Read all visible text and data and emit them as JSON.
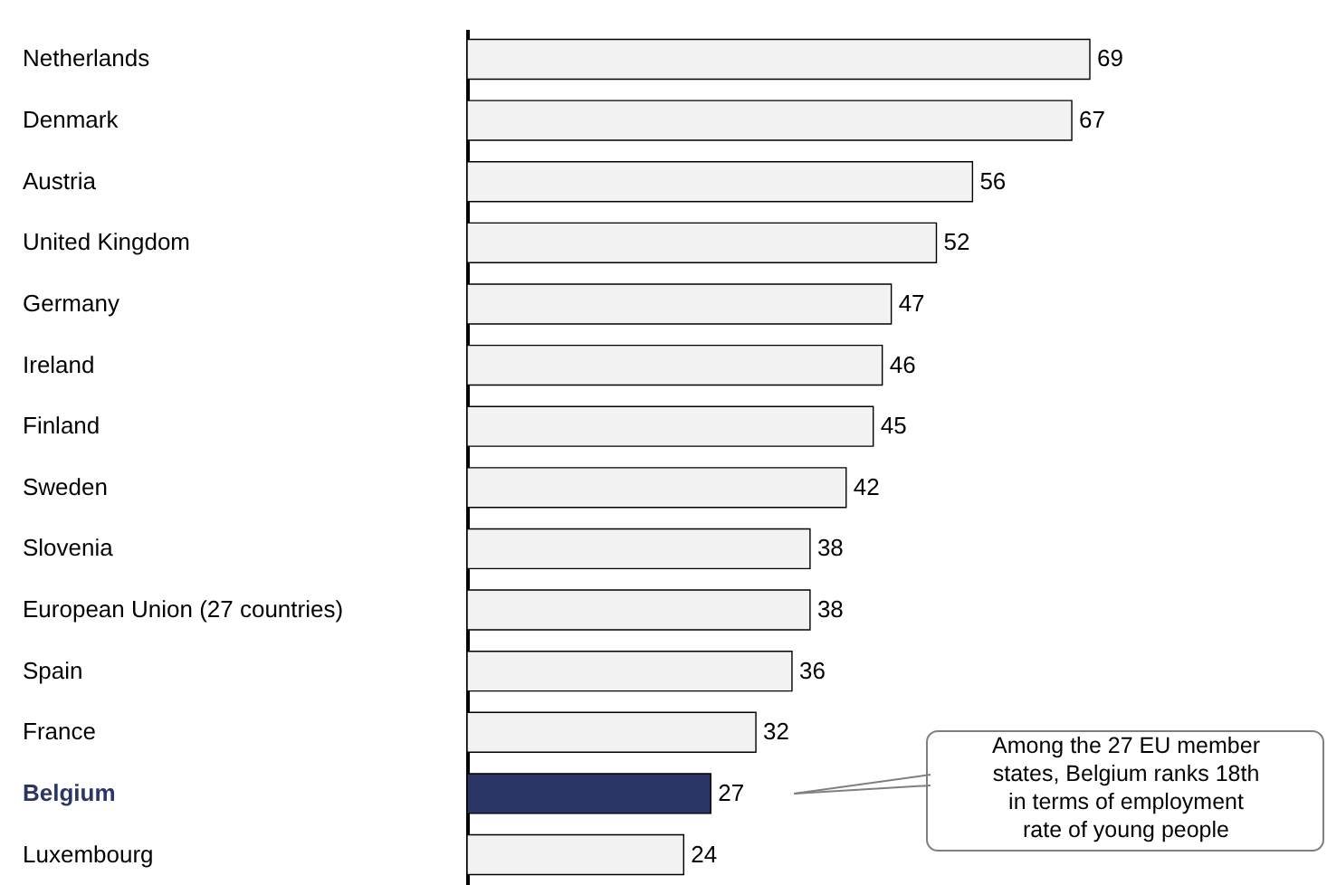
{
  "chart_data": {
    "type": "bar",
    "orientation": "horizontal",
    "data_labels": true,
    "categories": [
      "Netherlands",
      "Denmark",
      "Austria",
      "United Kingdom",
      "Germany",
      "Ireland",
      "Finland",
      "Sweden",
      "Slovenia",
      "European Union (27 countries)",
      "Spain",
      "France",
      "Belgium",
      "Luxembourg"
    ],
    "values": [
      69,
      67,
      56,
      52,
      47,
      46,
      45,
      42,
      38,
      38,
      36,
      32,
      27,
      24
    ],
    "colors": [
      "#f2f2f2",
      "#f2f2f2",
      "#f2f2f2",
      "#f2f2f2",
      "#f2f2f2",
      "#f2f2f2",
      "#f2f2f2",
      "#f2f2f2",
      "#f2f2f2",
      "#f2f2f2",
      "#f2f2f2",
      "#f2f2f2",
      "#2b3667",
      "#f2f2f2"
    ],
    "annotations": [
      "Among the 27 EU member\nstates, Belgium ranks 18th\nin terms of employment\nrate of young people"
    ]
  }
}
